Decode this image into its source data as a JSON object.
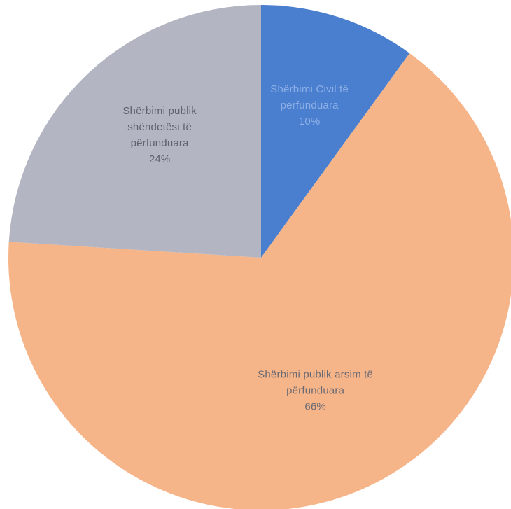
{
  "chart_data": {
    "type": "pie",
    "title": "",
    "slices": [
      {
        "label_lines": [
          "Shërbimi Civil të",
          "përfunduara",
          "10%"
        ],
        "name": "Shërbimi Civil të përfunduara",
        "value": 10,
        "color": "#4a7fd0",
        "label_color": "#8fb0e6"
      },
      {
        "label_lines": [
          "Shërbimi publik arsim të",
          "përfunduara",
          "66%"
        ],
        "name": "Shërbimi publik arsim të përfunduara",
        "value": 66,
        "color": "#f6b489",
        "label_color": "#6a6a72"
      },
      {
        "label_lines": [
          "Shërbimi publik",
          "shëndetësi të",
          "përfunduara",
          "24%"
        ],
        "name": "Shërbimi publik shëndetësi të përfunduara",
        "value": 24,
        "color": "#b3b6c2",
        "label_color": "#5f616b"
      }
    ],
    "start_angle_deg": 0,
    "direction": "clockwise",
    "legend": "none"
  }
}
